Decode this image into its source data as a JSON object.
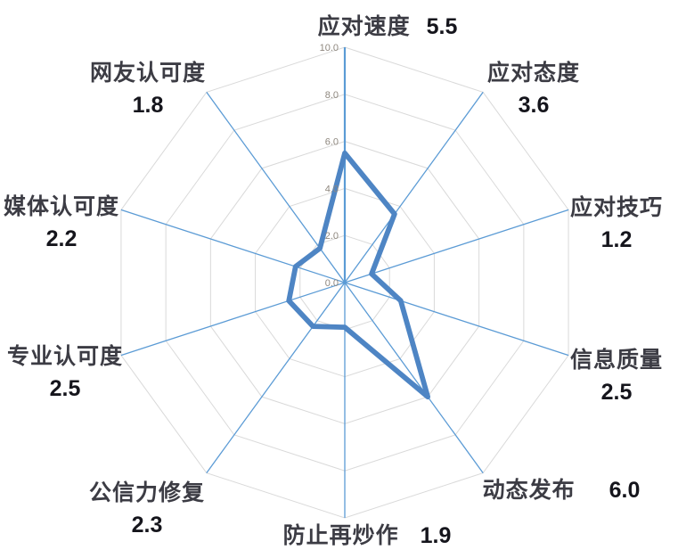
{
  "chart_data": {
    "type": "radar",
    "categories": [
      "应对速度",
      "应对态度",
      "应对技巧",
      "信息质量",
      "动态发布",
      "防止再炒作",
      "公信力修复",
      "专业认可度",
      "媒体认可度",
      "网友认可度"
    ],
    "values": [
      5.5,
      3.6,
      1.2,
      2.5,
      6.0,
      1.9,
      2.3,
      2.5,
      2.2,
      1.8
    ],
    "value_labels": [
      "5.5",
      "3.6",
      "1.2",
      "2.5",
      "6.0",
      "1.9",
      "2.3",
      "2.5",
      "2.2",
      "1.8"
    ],
    "radial_axis": {
      "min": 0,
      "max": 10,
      "interval": 2,
      "tick_labels": [
        "0.0",
        "2.0",
        "4.0",
        "6.0",
        "8.0",
        "10.0"
      ]
    },
    "grid": true,
    "legend_position": "none",
    "series_fill": "none",
    "colors": {
      "series_line": "#4e85c4",
      "spoke_line": "#5b9bd5",
      "ring_line": "#d9d9d9",
      "tick_text": "#8f887f",
      "category_text": "#3c3c44",
      "value_text": "#15151c"
    }
  }
}
